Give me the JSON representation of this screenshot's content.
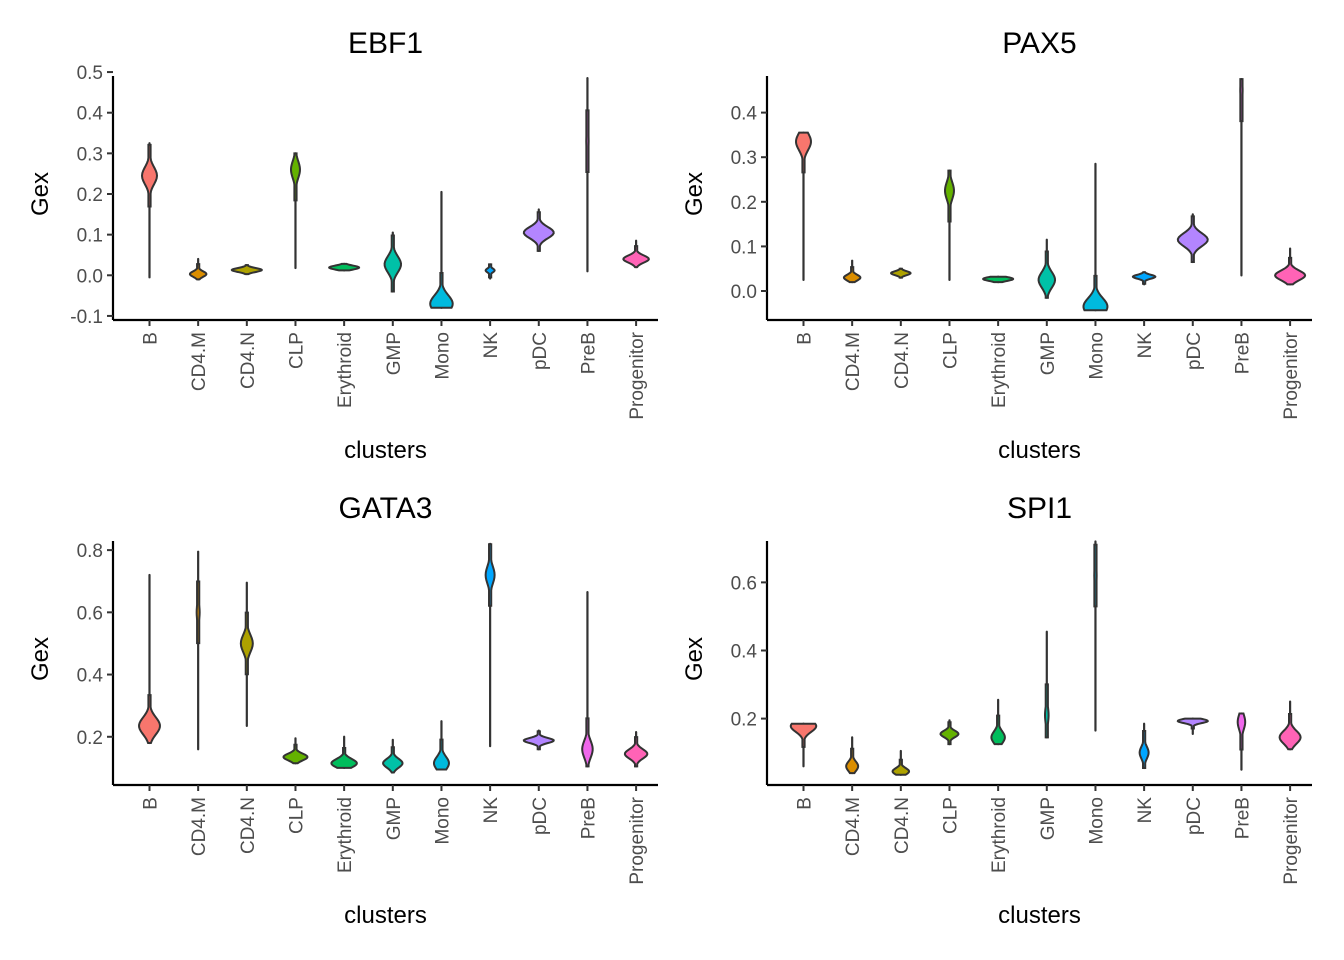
{
  "chart_data": [
    {
      "type": "violin",
      "title": "EBF1",
      "xlabel": "clusters",
      "ylabel": "Gex",
      "ylim": [
        -0.11,
        0.51
      ],
      "yticks": [
        -0.1,
        0.0,
        0.1,
        0.2,
        0.3,
        0.4,
        0.5
      ],
      "ytick_labels": [
        "-0.1",
        "0.0",
        "0.1",
        "0.2",
        "0.3",
        "0.4",
        "0.5"
      ],
      "categories": [
        "B",
        "CD4.M",
        "CD4.N",
        "CLP",
        "Erythroid",
        "GMP",
        "Mono",
        "NK",
        "pDC",
        "PreB",
        "Progenitor"
      ],
      "violins": [
        {
          "min": -0.005,
          "max": 0.325,
          "mode": 0.245,
          "halfwidth": 0.5
        },
        {
          "min": -0.01,
          "max": 0.04,
          "mode": 0.003,
          "halfwidth": 0.55
        },
        {
          "min": 0.003,
          "max": 0.025,
          "mode": 0.013,
          "halfwidth": 1.0
        },
        {
          "min": 0.018,
          "max": 0.3,
          "mode": 0.26,
          "halfwidth": 0.3
        },
        {
          "min": 0.012,
          "max": 0.028,
          "mode": 0.019,
          "halfwidth": 1.0
        },
        {
          "min": -0.04,
          "max": 0.105,
          "mode": 0.027,
          "halfwidth": 0.55
        },
        {
          "min": -0.08,
          "max": 0.205,
          "mode": -0.07,
          "halfwidth": 0.75
        },
        {
          "min": -0.008,
          "max": 0.027,
          "mode": 0.012,
          "halfwidth": 0.3
        },
        {
          "min": 0.06,
          "max": 0.162,
          "mode": 0.105,
          "halfwidth": 1.0
        },
        {
          "min": 0.01,
          "max": 0.485,
          "mode": 0.33,
          "halfwidth": 0.06
        },
        {
          "min": 0.02,
          "max": 0.085,
          "mode": 0.04,
          "halfwidth": 0.85
        }
      ]
    },
    {
      "type": "violin",
      "title": "PAX5",
      "xlabel": "clusters",
      "ylabel": "Gex",
      "ylim": [
        -0.065,
        0.5
      ],
      "yticks": [
        0.0,
        0.1,
        0.2,
        0.3,
        0.4
      ],
      "ytick_labels": [
        "0.0",
        "0.1",
        "0.2",
        "0.3",
        "0.4"
      ],
      "categories": [
        "B",
        "CD4.M",
        "CD4.N",
        "CLP",
        "Erythroid",
        "GMP",
        "Mono",
        "NK",
        "pDC",
        "PreB",
        "Progenitor"
      ],
      "violins": [
        {
          "min": 0.025,
          "max": 0.355,
          "mode": 0.335,
          "halfwidth": 0.5
        },
        {
          "min": 0.02,
          "max": 0.068,
          "mode": 0.03,
          "halfwidth": 0.55
        },
        {
          "min": 0.03,
          "max": 0.05,
          "mode": 0.04,
          "halfwidth": 0.65
        },
        {
          "min": 0.025,
          "max": 0.27,
          "mode": 0.225,
          "halfwidth": 0.3
        },
        {
          "min": 0.02,
          "max": 0.032,
          "mode": 0.027,
          "halfwidth": 1.0
        },
        {
          "min": -0.015,
          "max": 0.115,
          "mode": 0.025,
          "halfwidth": 0.55
        },
        {
          "min": -0.043,
          "max": 0.285,
          "mode": -0.035,
          "halfwidth": 0.8
        },
        {
          "min": 0.015,
          "max": 0.042,
          "mode": 0.032,
          "halfwidth": 0.75
        },
        {
          "min": 0.065,
          "max": 0.172,
          "mode": 0.115,
          "halfwidth": 1.0
        },
        {
          "min": 0.035,
          "max": 0.475,
          "mode": 0.45,
          "halfwidth": 0.06
        },
        {
          "min": 0.015,
          "max": 0.095,
          "mode": 0.035,
          "halfwidth": 1.0
        }
      ]
    },
    {
      "type": "violin",
      "title": "GATA3",
      "xlabel": "clusters",
      "ylabel": "Gex",
      "ylim": [
        0.045,
        0.855
      ],
      "yticks": [
        0.2,
        0.4,
        0.6,
        0.8
      ],
      "ytick_labels": [
        "0.2",
        "0.4",
        "0.6",
        "0.8"
      ],
      "categories": [
        "B",
        "CD4.M",
        "CD4.N",
        "CLP",
        "Erythroid",
        "GMP",
        "Mono",
        "NK",
        "pDC",
        "PreB",
        "Progenitor"
      ],
      "violins": [
        {
          "min": 0.18,
          "max": 0.72,
          "mode": 0.235,
          "halfwidth": 0.7
        },
        {
          "min": 0.16,
          "max": 0.795,
          "mode": 0.6,
          "halfwidth": 0.1
        },
        {
          "min": 0.235,
          "max": 0.695,
          "mode": 0.5,
          "halfwidth": 0.4
        },
        {
          "min": 0.115,
          "max": 0.195,
          "mode": 0.135,
          "halfwidth": 0.8
        },
        {
          "min": 0.1,
          "max": 0.2,
          "mode": 0.115,
          "halfwidth": 0.85
        },
        {
          "min": 0.085,
          "max": 0.19,
          "mode": 0.115,
          "halfwidth": 0.65
        },
        {
          "min": 0.095,
          "max": 0.25,
          "mode": 0.115,
          "halfwidth": 0.5
        },
        {
          "min": 0.17,
          "max": 0.82,
          "mode": 0.72,
          "halfwidth": 0.3
        },
        {
          "min": 0.16,
          "max": 0.22,
          "mode": 0.188,
          "halfwidth": 1.0
        },
        {
          "min": 0.105,
          "max": 0.665,
          "mode": 0.16,
          "halfwidth": 0.35
        },
        {
          "min": 0.105,
          "max": 0.215,
          "mode": 0.145,
          "halfwidth": 0.75
        }
      ]
    },
    {
      "type": "violin",
      "title": "SPI1",
      "xlabel": "clusters",
      "ylabel": "Gex",
      "ylim": [
        0.005,
        0.745
      ],
      "yticks": [
        0.2,
        0.4,
        0.6
      ],
      "ytick_labels": [
        "0.2",
        "0.4",
        "0.6"
      ],
      "categories": [
        "B",
        "CD4.M",
        "CD4.N",
        "CLP",
        "Erythroid",
        "GMP",
        "Mono",
        "NK",
        "pDC",
        "PreB",
        "Progenitor"
      ],
      "violins": [
        {
          "min": 0.06,
          "max": 0.185,
          "mode": 0.178,
          "halfwidth": 0.85
        },
        {
          "min": 0.04,
          "max": 0.145,
          "mode": 0.06,
          "halfwidth": 0.4
        },
        {
          "min": 0.035,
          "max": 0.105,
          "mode": 0.045,
          "halfwidth": 0.55
        },
        {
          "min": 0.125,
          "max": 0.195,
          "mode": 0.155,
          "halfwidth": 0.6
        },
        {
          "min": 0.125,
          "max": 0.255,
          "mode": 0.145,
          "halfwidth": 0.45
        },
        {
          "min": 0.145,
          "max": 0.455,
          "mode": 0.21,
          "halfwidth": 0.12
        },
        {
          "min": 0.165,
          "max": 0.72,
          "mode": 0.62,
          "halfwidth": 0.06
        },
        {
          "min": 0.055,
          "max": 0.185,
          "mode": 0.1,
          "halfwidth": 0.3
        },
        {
          "min": 0.155,
          "max": 0.2,
          "mode": 0.193,
          "halfwidth": 1.0
        },
        {
          "min": 0.05,
          "max": 0.215,
          "mode": 0.19,
          "halfwidth": 0.25
        },
        {
          "min": 0.11,
          "max": 0.25,
          "mode": 0.145,
          "halfwidth": 0.7
        }
      ]
    }
  ],
  "colors": [
    "#F8766D",
    "#DB8E00",
    "#AEA200",
    "#64B200",
    "#00BD5C",
    "#00C1A7",
    "#00BADE",
    "#00A6FF",
    "#B385FF",
    "#EF67EB",
    "#FF63B6"
  ]
}
